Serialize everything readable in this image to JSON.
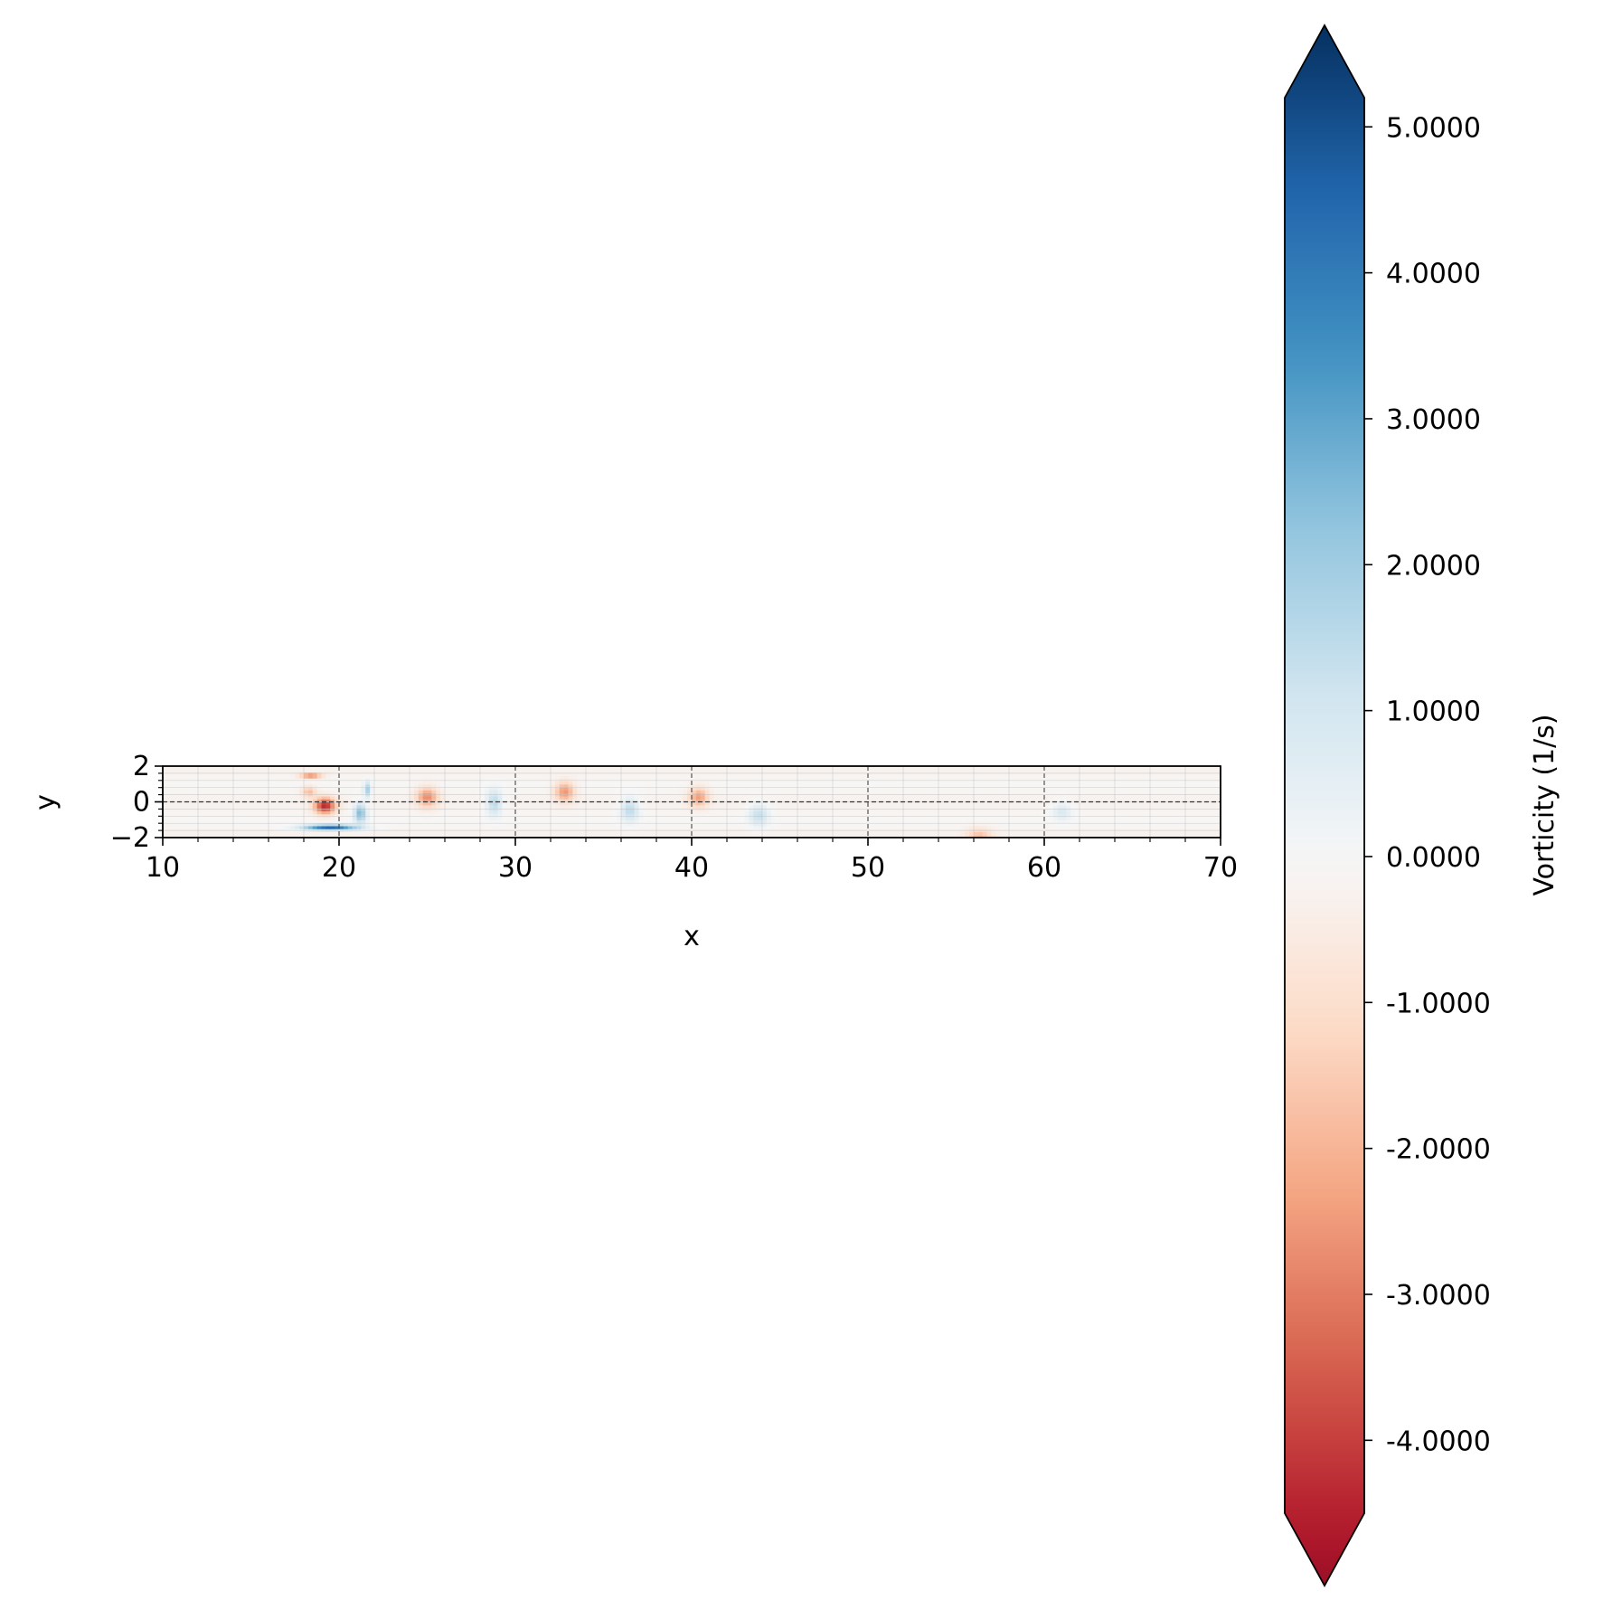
{
  "chart_data": {
    "type": "heatmap",
    "title": "",
    "xlabel": "x",
    "ylabel": "y",
    "xlim": [
      10,
      70
    ],
    "ylim": [
      -2,
      2
    ],
    "x_ticks": [
      10,
      20,
      30,
      40,
      50,
      60,
      70
    ],
    "x_tick_labels": [
      "10",
      "20",
      "30",
      "40",
      "50",
      "60",
      "70"
    ],
    "y_ticks": [
      -2,
      0,
      2
    ],
    "y_tick_labels": [
      "−2",
      "0",
      "2"
    ],
    "grid": true,
    "reference_line_y": 0,
    "background_vorticity": -0.2,
    "vortices": [
      {
        "x": 18.4,
        "y": 1.5,
        "vorticity": -3.2,
        "sx": 0.6,
        "sy": 0.12
      },
      {
        "x": 19.2,
        "y": -0.2,
        "vorticity": -3.8,
        "sx": 0.6,
        "sy": 0.45
      },
      {
        "x": 18.3,
        "y": 0.6,
        "vorticity": -1.5,
        "sx": 0.4,
        "sy": 0.3
      },
      {
        "x": 19.5,
        "y": -1.4,
        "vorticity": 4.2,
        "sx": 1.5,
        "sy": 0.15
      },
      {
        "x": 21.2,
        "y": -0.6,
        "vorticity": 2.4,
        "sx": 0.35,
        "sy": 0.55
      },
      {
        "x": 21.6,
        "y": 0.7,
        "vorticity": 1.8,
        "sx": 0.2,
        "sy": 0.45
      },
      {
        "x": 25.0,
        "y": 0.3,
        "vorticity": -2.3,
        "sx": 0.6,
        "sy": 0.55
      },
      {
        "x": 28.8,
        "y": 0.0,
        "vorticity": 1.6,
        "sx": 0.45,
        "sy": 0.7
      },
      {
        "x": 32.8,
        "y": 0.6,
        "vorticity": -2.2,
        "sx": 0.55,
        "sy": 0.55
      },
      {
        "x": 36.5,
        "y": -0.4,
        "vorticity": 1.5,
        "sx": 0.5,
        "sy": 0.65
      },
      {
        "x": 40.4,
        "y": 0.3,
        "vorticity": -2.0,
        "sx": 0.55,
        "sy": 0.55
      },
      {
        "x": 43.8,
        "y": -0.7,
        "vorticity": 1.3,
        "sx": 0.55,
        "sy": 0.6
      },
      {
        "x": 56.3,
        "y": -1.9,
        "vorticity": -1.4,
        "sx": 0.7,
        "sy": 0.45
      },
      {
        "x": 61.0,
        "y": -0.5,
        "vorticity": 0.9,
        "sx": 0.55,
        "sy": 0.5
      }
    ],
    "colorbar": {
      "label": "Vorticity (1/s)",
      "colormap": "RdBu",
      "vmin": -4.5,
      "vmax": 5.2,
      "extend": "both",
      "ticks": [
        5.0,
        4.0,
        3.0,
        2.0,
        1.0,
        0.0,
        -1.0,
        -2.0,
        -3.0,
        -4.0
      ],
      "tick_labels": [
        "5.0000",
        "4.0000",
        "3.0000",
        "2.0000",
        "1.0000",
        "0.0000",
        "-1.0000",
        "-2.0000",
        "-3.0000",
        "-4.0000"
      ],
      "colors": [
        "#67001f",
        "#b2182b",
        "#d6604d",
        "#f4a582",
        "#fddbc7",
        "#f7f7f7",
        "#d1e5f0",
        "#92c5de",
        "#4393c3",
        "#2166ac",
        "#053061"
      ]
    }
  }
}
